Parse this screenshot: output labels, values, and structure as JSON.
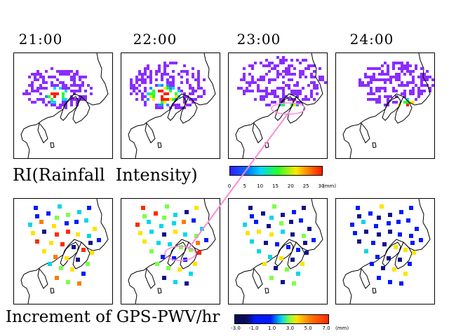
{
  "times": [
    "21:00",
    "22:00",
    "23:00",
    "24:00"
  ],
  "rain_label": "RI(Rainfall  Intensity)",
  "pwv_label": "Increment of GPS-PWV/hr",
  "rain_colorbar": {
    "ticks": [
      "0",
      "5",
      "10",
      "15",
      "20",
      "25",
      "30"
    ],
    "unit": "(mm)",
    "colors": [
      "#3a1cff",
      "#0070ff",
      "#00d6ff",
      "#27ff2a",
      "#ffe800",
      "#ff7a00",
      "#ff1700"
    ]
  },
  "pwv_colorbar": {
    "ticks": [
      "-3.0",
      "-1.0",
      "1.0",
      "3.0",
      "5.0",
      "7.0"
    ],
    "unit": "(mm)",
    "colors": [
      "#0a0b58",
      "#001aff",
      "#00d7e8",
      "#7dff47",
      "#ffe300",
      "#ff2a00"
    ]
  },
  "colors": {
    "rain_light": "#8a2dff",
    "rain_mid": "#2a8cff",
    "rain_heavy": "#ff1e00",
    "annotation": "#ff8ad8",
    "station_low": "#10138a",
    "station_neg": "#0010ff"
  }
}
